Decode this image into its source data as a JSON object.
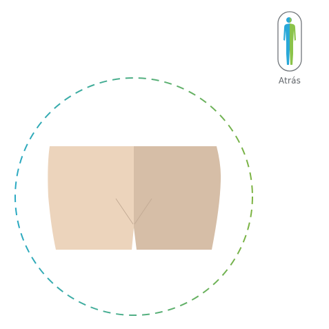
{
  "back_button": {
    "label": "Atrás",
    "icon": "body-front-back-icon"
  },
  "view": {
    "region": "buttocks",
    "icon": "buttocks-illustration"
  },
  "colors": {
    "ring_left": "#2aa9c2",
    "ring_right": "#7cb342",
    "skin_light": "#ecd4bc",
    "skin_dark": "#d6bea7",
    "figure_blue": "#29a8d8",
    "figure_green": "#8bc34a",
    "pill_border": "#6f7479"
  }
}
